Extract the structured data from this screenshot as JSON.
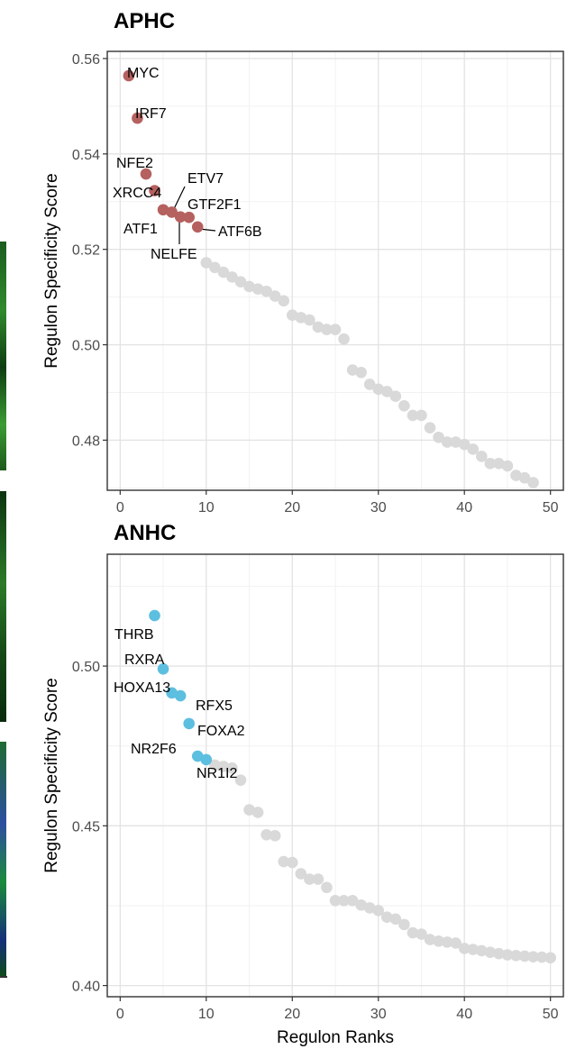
{
  "chart_data": [
    {
      "type": "scatter",
      "title": "APHC",
      "xlabel": "",
      "ylabel": "Regulon Specificity Score",
      "xlim": [
        -1.5,
        51.5
      ],
      "ylim": [
        0.4695,
        0.5615
      ],
      "xticks": [
        0,
        10,
        20,
        30,
        40,
        50
      ],
      "xtick_labels": [
        "0",
        "10",
        "20",
        "30",
        "40",
        "50"
      ],
      "yticks": [
        0.48,
        0.5,
        0.52,
        0.54,
        0.56
      ],
      "ytick_labels": [
        "0.48",
        "0.50",
        "0.52",
        "0.54",
        "0.56"
      ],
      "grid": true,
      "highlight_color": "#b5615f",
      "other_color": "#d9d9d9",
      "points": [
        {
          "x": 1,
          "y": 0.5564,
          "label": "MYC"
        },
        {
          "x": 2,
          "y": 0.5475,
          "label": "IRF7"
        },
        {
          "x": 3,
          "y": 0.5358,
          "label": "NFE2"
        },
        {
          "x": 4,
          "y": 0.5323,
          "label": "XRCC4"
        },
        {
          "x": 5,
          "y": 0.5283,
          "label": "ATF1"
        },
        {
          "x": 6,
          "y": 0.5278,
          "label": "ETV7"
        },
        {
          "x": 7,
          "y": 0.5268,
          "label": "NELFE"
        },
        {
          "x": 8,
          "y": 0.5267,
          "label": "GTF2F1"
        },
        {
          "x": 9,
          "y": 0.5247,
          "label": "ATF6B"
        },
        {
          "x": 10,
          "y": 0.5172
        },
        {
          "x": 11,
          "y": 0.5162
        },
        {
          "x": 12,
          "y": 0.5152
        },
        {
          "x": 13,
          "y": 0.5142
        },
        {
          "x": 14,
          "y": 0.5132
        },
        {
          "x": 15,
          "y": 0.5122
        },
        {
          "x": 16,
          "y": 0.5117
        },
        {
          "x": 17,
          "y": 0.5112
        },
        {
          "x": 18,
          "y": 0.5102
        },
        {
          "x": 19,
          "y": 0.5092
        },
        {
          "x": 20,
          "y": 0.5062
        },
        {
          "x": 21,
          "y": 0.5057
        },
        {
          "x": 22,
          "y": 0.5052
        },
        {
          "x": 23,
          "y": 0.5037
        },
        {
          "x": 24,
          "y": 0.5032
        },
        {
          "x": 25,
          "y": 0.5032
        },
        {
          "x": 26,
          "y": 0.5012
        },
        {
          "x": 27,
          "y": 0.4947
        },
        {
          "x": 28,
          "y": 0.4942
        },
        {
          "x": 29,
          "y": 0.4917
        },
        {
          "x": 30,
          "y": 0.4907
        },
        {
          "x": 31,
          "y": 0.4902
        },
        {
          "x": 32,
          "y": 0.4892
        },
        {
          "x": 33,
          "y": 0.4872
        },
        {
          "x": 34,
          "y": 0.4852
        },
        {
          "x": 35,
          "y": 0.4852
        },
        {
          "x": 36,
          "y": 0.4826
        },
        {
          "x": 37,
          "y": 0.4806
        },
        {
          "x": 38,
          "y": 0.4796
        },
        {
          "x": 39,
          "y": 0.4796
        },
        {
          "x": 40,
          "y": 0.4791
        },
        {
          "x": 41,
          "y": 0.4781
        },
        {
          "x": 42,
          "y": 0.4766
        },
        {
          "x": 43,
          "y": 0.4751
        },
        {
          "x": 44,
          "y": 0.4751
        },
        {
          "x": 45,
          "y": 0.4746
        },
        {
          "x": 46,
          "y": 0.4726
        },
        {
          "x": 47,
          "y": 0.4721
        },
        {
          "x": 48,
          "y": 0.4711
        }
      ]
    },
    {
      "type": "scatter",
      "title": "ANHC",
      "xlabel": "Regulon Ranks",
      "ylabel": "Regulon Specificity Score",
      "xlim": [
        -1.5,
        51.5
      ],
      "ylim": [
        0.3965,
        0.535
      ],
      "xticks": [
        0,
        10,
        20,
        30,
        40,
        50
      ],
      "xtick_labels": [
        "0",
        "10",
        "20",
        "30",
        "40",
        "50"
      ],
      "yticks": [
        0.4,
        0.45,
        0.5
      ],
      "ytick_labels": [
        "0.40",
        "0.45",
        "0.50"
      ],
      "grid": true,
      "highlight_color": "#5dbfe0",
      "other_color": "#d9d9d9",
      "points": [
        {
          "x": 4,
          "y": 0.5158,
          "label": "THRB"
        },
        {
          "x": 5,
          "y": 0.4991,
          "label": "RXRA"
        },
        {
          "x": 6,
          "y": 0.4916,
          "label": "HOXA13"
        },
        {
          "x": 7,
          "y": 0.4907,
          "label": "RFX5"
        },
        {
          "x": 8,
          "y": 0.482,
          "label": "FOXA2"
        },
        {
          "x": 9,
          "y": 0.4718,
          "label": "NR2F6"
        },
        {
          "x": 10,
          "y": 0.4707,
          "label": "NR1I2"
        },
        {
          "x": 11,
          "y": 0.469
        },
        {
          "x": 12,
          "y": 0.4686
        },
        {
          "x": 13,
          "y": 0.4681
        },
        {
          "x": 14,
          "y": 0.4643
        },
        {
          "x": 15,
          "y": 0.455
        },
        {
          "x": 16,
          "y": 0.4542
        },
        {
          "x": 17,
          "y": 0.4472
        },
        {
          "x": 18,
          "y": 0.4469
        },
        {
          "x": 19,
          "y": 0.4388
        },
        {
          "x": 20,
          "y": 0.4385
        },
        {
          "x": 21,
          "y": 0.435
        },
        {
          "x": 22,
          "y": 0.4333
        },
        {
          "x": 23,
          "y": 0.4333
        },
        {
          "x": 24,
          "y": 0.4307
        },
        {
          "x": 25,
          "y": 0.4266
        },
        {
          "x": 26,
          "y": 0.4266
        },
        {
          "x": 27,
          "y": 0.4266
        },
        {
          "x": 28,
          "y": 0.4252
        },
        {
          "x": 29,
          "y": 0.4243
        },
        {
          "x": 30,
          "y": 0.4235
        },
        {
          "x": 31,
          "y": 0.4214
        },
        {
          "x": 32,
          "y": 0.4208
        },
        {
          "x": 33,
          "y": 0.4191
        },
        {
          "x": 34,
          "y": 0.4165
        },
        {
          "x": 35,
          "y": 0.4161
        },
        {
          "x": 36,
          "y": 0.4144
        },
        {
          "x": 37,
          "y": 0.4139
        },
        {
          "x": 38,
          "y": 0.4136
        },
        {
          "x": 39,
          "y": 0.4133
        },
        {
          "x": 40,
          "y": 0.4116
        },
        {
          "x": 41,
          "y": 0.4113
        },
        {
          "x": 42,
          "y": 0.4109
        },
        {
          "x": 43,
          "y": 0.4104
        },
        {
          "x": 44,
          "y": 0.41
        },
        {
          "x": 45,
          "y": 0.4096
        },
        {
          "x": 46,
          "y": 0.4094
        },
        {
          "x": 47,
          "y": 0.4092
        },
        {
          "x": 48,
          "y": 0.409
        },
        {
          "x": 49,
          "y": 0.4089
        },
        {
          "x": 50,
          "y": 0.4087
        }
      ]
    }
  ]
}
